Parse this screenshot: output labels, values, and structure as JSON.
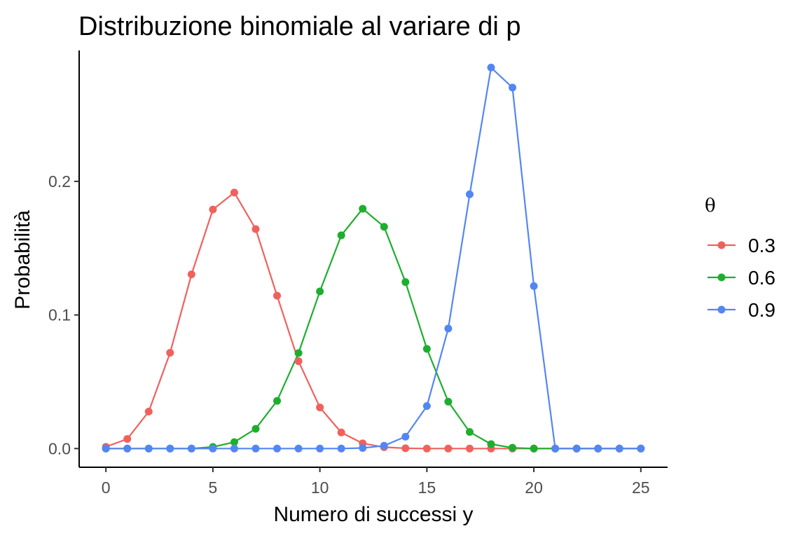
{
  "chart_data": {
    "type": "line",
    "title": "Distribuzione binomiale al variare di p",
    "xlabel": "Numero di successi y",
    "ylabel": "Probabilità",
    "xlim": [
      -1.25,
      26.25
    ],
    "ylim": [
      -0.014,
      0.298
    ],
    "xticks": [
      0,
      5,
      10,
      15,
      20,
      25
    ],
    "xtick_labels": [
      "0",
      "5",
      "10",
      "15",
      "20",
      "25"
    ],
    "yticks": [
      0,
      0.1,
      0.2
    ],
    "ytick_labels": [
      "0.0",
      "0.1",
      "0.2"
    ],
    "grid": false,
    "legend": {
      "title": "θ",
      "position": "right"
    },
    "x": [
      0,
      1,
      2,
      3,
      4,
      5,
      6,
      7,
      8,
      9,
      10,
      11,
      12,
      13,
      14,
      15,
      16,
      17,
      18,
      19,
      20,
      21,
      22,
      23,
      24,
      25
    ],
    "series": [
      {
        "name": "0.3",
        "color": "#F0615D",
        "values": [
          0.0013,
          0.0072,
          0.0277,
          0.0717,
          0.1304,
          0.1789,
          0.1916,
          0.1643,
          0.1144,
          0.0654,
          0.0308,
          0.012,
          0.0039,
          0.001,
          0.0002,
          0.0,
          0.0,
          0.0,
          0.0,
          0.0,
          0.0,
          0.0,
          0.0,
          0.0,
          0.0,
          0.0
        ]
      },
      {
        "name": "0.6",
        "color": "#1EAE2E",
        "values": [
          0.0,
          0.0,
          0.0,
          0.0,
          0.0,
          0.0012,
          0.0048,
          0.0148,
          0.0357,
          0.0715,
          0.1176,
          0.1596,
          0.1795,
          0.166,
          0.1246,
          0.0746,
          0.0351,
          0.0124,
          0.0033,
          0.0006,
          0.0,
          0.0,
          0.0,
          0.0,
          0.0,
          0.0
        ]
      },
      {
        "name": "0.9",
        "color": "#5486F3",
        "values": [
          0.0,
          0.0,
          0.0,
          0.0,
          0.0,
          0.0,
          0.0,
          0.0,
          0.0,
          0.0,
          0.0,
          0.0,
          0.0004,
          0.0021,
          0.0089,
          0.0318,
          0.0898,
          0.1903,
          0.2852,
          0.2702,
          0.1216,
          0.0,
          0.0,
          0.0,
          0.0,
          0.0
        ]
      }
    ]
  }
}
